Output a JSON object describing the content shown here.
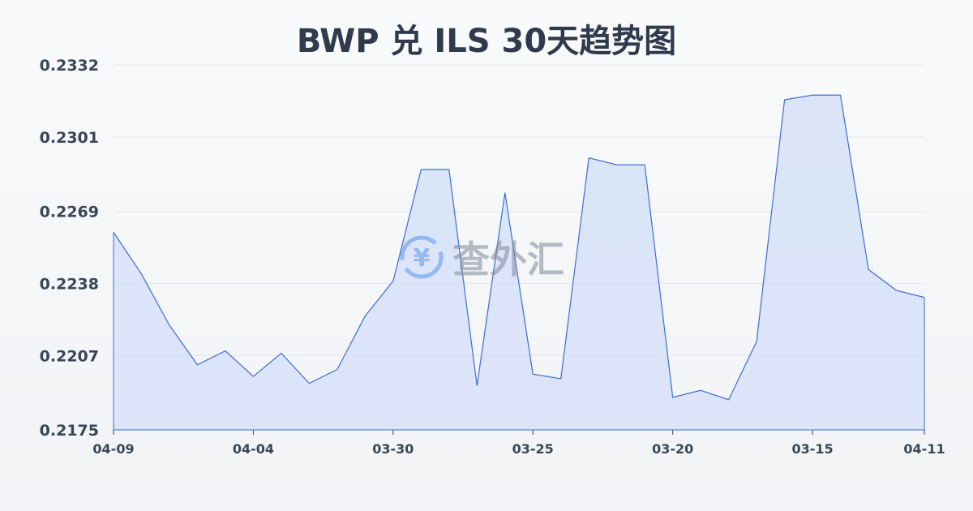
{
  "chart_data": {
    "type": "area",
    "title": "BWP 兑 ILS 30天趋势图",
    "xlabel": "",
    "ylabel": "",
    "ylim": [
      0.2175,
      0.2332
    ],
    "y_ticks": [
      "0.2332",
      "0.2301",
      "0.2269",
      "0.2238",
      "0.2207",
      "0.2175"
    ],
    "x_ticks": [
      {
        "index": 0,
        "label": "04-09"
      },
      {
        "index": 5,
        "label": "04-04"
      },
      {
        "index": 10,
        "label": "03-30"
      },
      {
        "index": 15,
        "label": "03-25"
      },
      {
        "index": 20,
        "label": "03-20"
      },
      {
        "index": 25,
        "label": "03-15"
      },
      {
        "index": 29,
        "label": "04-11"
      }
    ],
    "values": [
      0.226,
      0.2242,
      0.222,
      0.2203,
      0.2209,
      0.2198,
      0.2208,
      0.2195,
      0.2201,
      0.2224,
      0.2239,
      0.2287,
      0.2287,
      0.2194,
      0.2277,
      0.2199,
      0.2197,
      0.2292,
      0.2289,
      0.2289,
      0.2189,
      0.2192,
      0.2188,
      0.2213,
      0.2317,
      0.2319,
      0.2319,
      0.2244,
      0.2235,
      0.2232
    ],
    "grid": true,
    "line_color": "#3b6fd4",
    "fill_color": "#d4e0f7"
  },
  "watermark": {
    "text": "查外汇",
    "icon": "yen-exchange-icon"
  }
}
